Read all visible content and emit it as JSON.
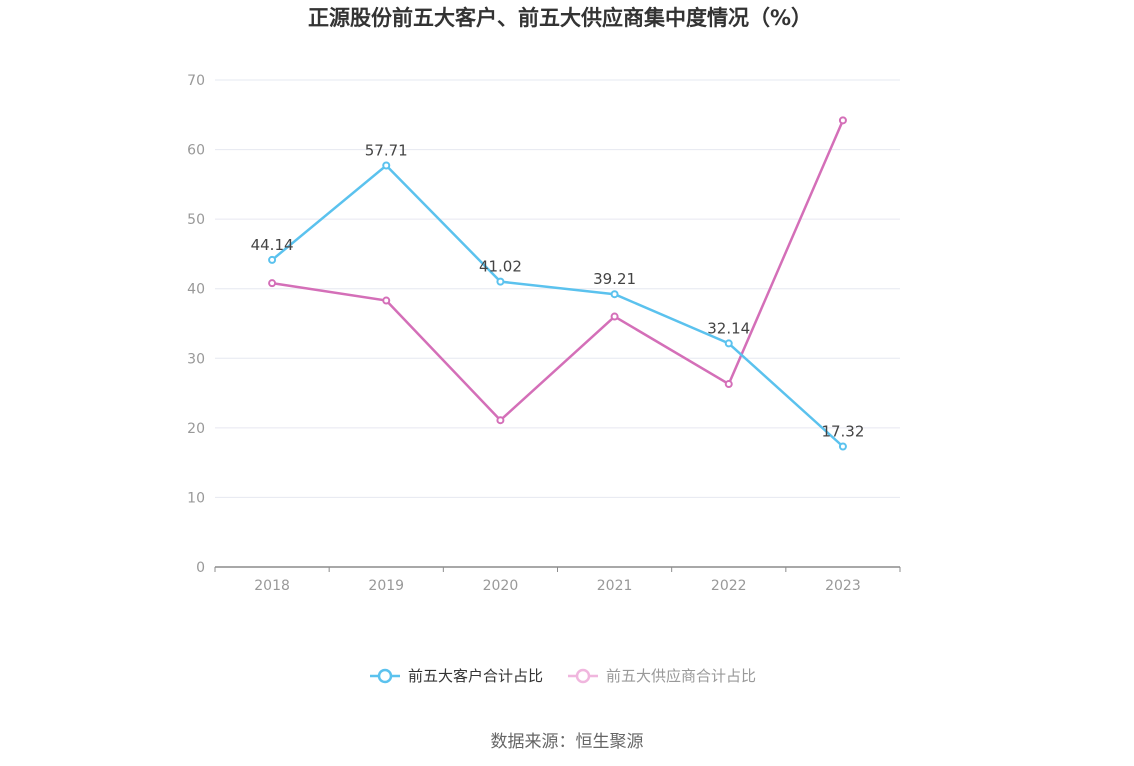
{
  "chart_data": {
    "type": "line",
    "title": "正源股份前五大客户、前五大供应商集中度情况（%）",
    "categories": [
      "2018",
      "2019",
      "2020",
      "2021",
      "2022",
      "2023"
    ],
    "ylim": [
      0,
      70
    ],
    "yticks": [
      0,
      10,
      20,
      30,
      40,
      50,
      60,
      70
    ],
    "grid": true,
    "legend_position": "bottom",
    "series": [
      {
        "name": "前五大客户合计占比",
        "color": "#5bc2ee",
        "values": [
          44.14,
          57.71,
          41.02,
          39.21,
          32.14,
          17.32
        ],
        "show_labels": true,
        "labels": [
          "44.14",
          "57.71",
          "41.02",
          "39.21",
          "32.14",
          "17.32"
        ]
      },
      {
        "name": "前五大供应商合计占比",
        "color": "#d46fb8",
        "values": [
          40.8,
          38.3,
          21.1,
          36.0,
          26.3,
          64.2
        ],
        "show_labels": false
      }
    ],
    "source": "数据来源：恒生聚源"
  },
  "colors": {
    "grid": "#e6e8f0",
    "axis": "#8c8c8c",
    "legend_inactive_text": "#999999",
    "legend_active_text": "#333333",
    "legend_inactive_marker": "#f0b6de"
  }
}
